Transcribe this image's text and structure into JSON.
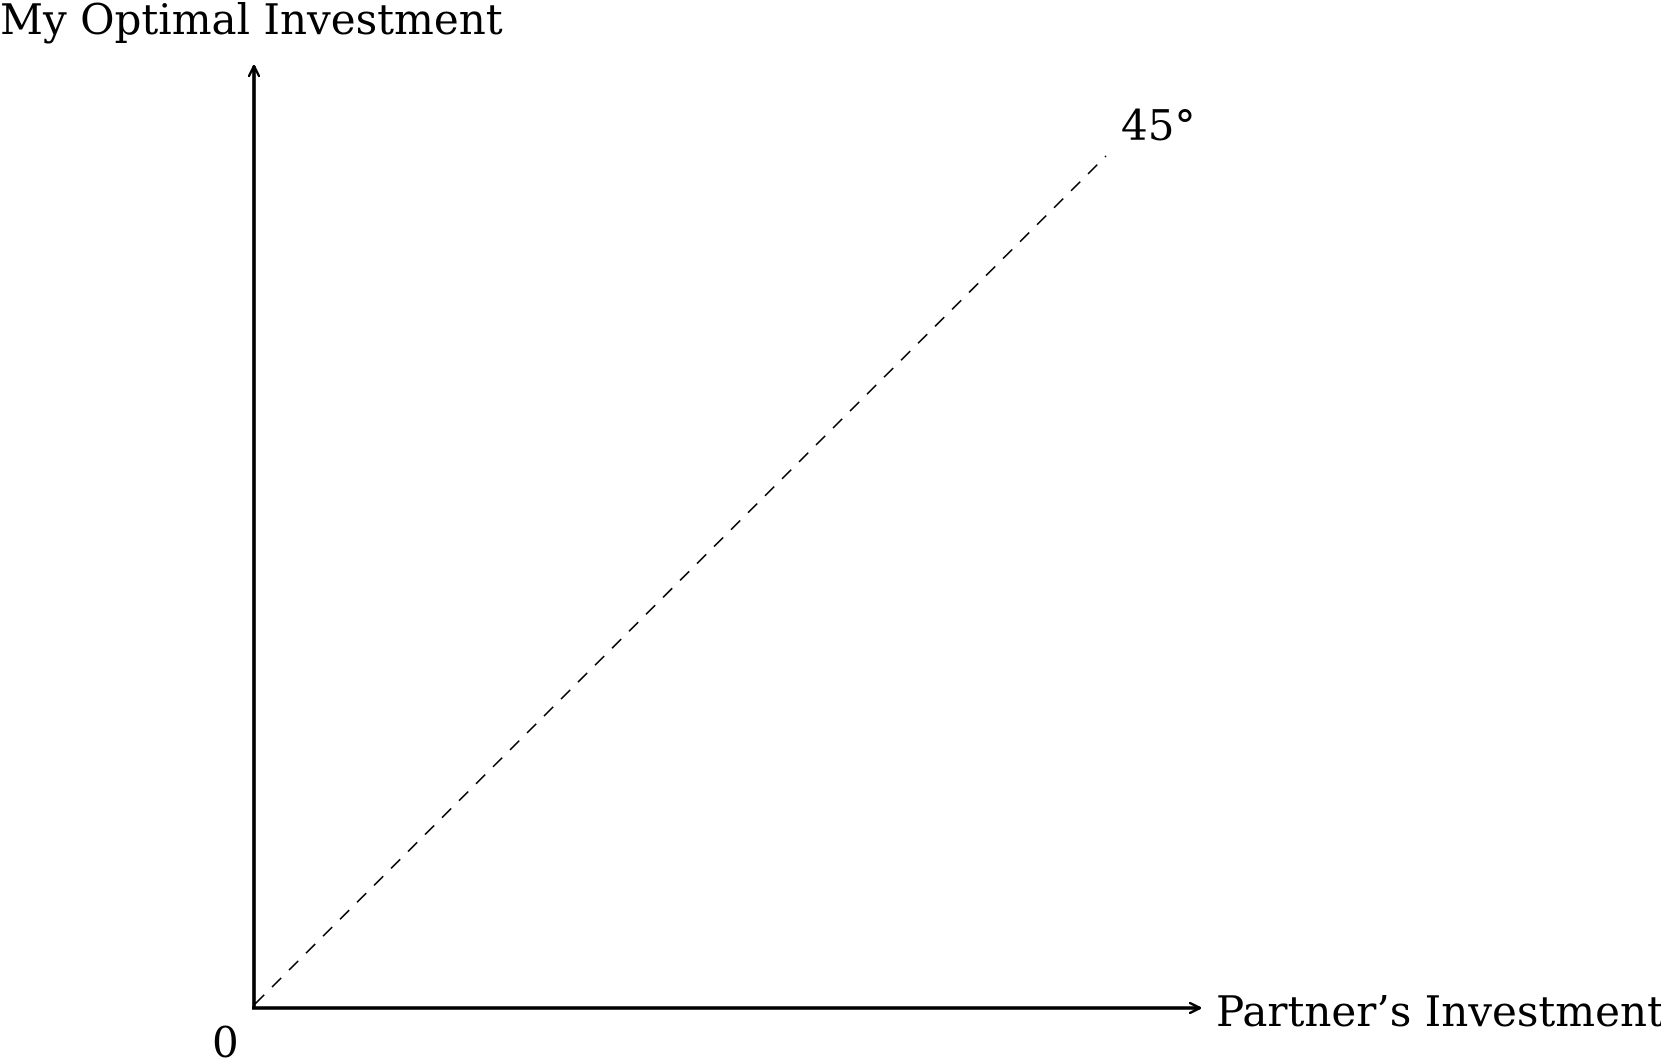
{
  "diagram": {
    "y_axis_label": "My Optimal Investment",
    "x_axis_label": "Partner’s Investment",
    "origin_label": "0",
    "reference_line_label": "45°",
    "reference_line_style": "dashed",
    "colors": {
      "ink": "#000000",
      "background": "#ffffff"
    }
  }
}
